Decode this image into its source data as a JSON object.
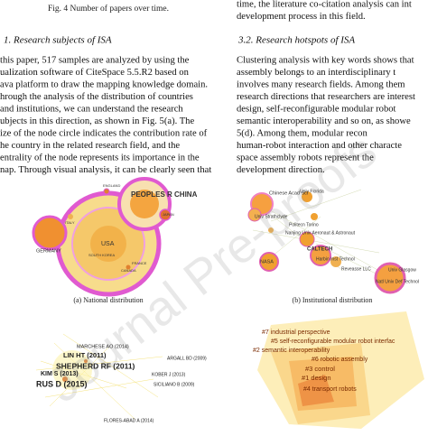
{
  "left_column": {
    "caption": "Fig. 4   Number of papers over time.",
    "heading": "1. Research subjects of ISA",
    "lines": [
      "this paper, 517 samples are analyzed by using the",
      "ualization software of CiteSpace 5.5.R2 based on",
      "ava platform to draw the mapping knowledge domain.",
      "hrough the analysis of the distribution of countries",
      "and institutions, we can understand the research",
      "ubjects in this direction, as shown in Fig. 5(a). The",
      "ize of the node circle indicates the contribution rate of",
      "he country in the related research field, and the",
      "entrality of the node represents its importance in the",
      "nap. Through visual analysis, it can be clearly seen that"
    ]
  },
  "right_column": {
    "top_lines": [
      "time, the literature co-citation analysis can int",
      "development process in this field."
    ],
    "heading": "3.2. Research hotspots of ISA",
    "lines": [
      "Clustering analysis with key words shows that",
      "assembly belongs to an interdisciplinary t",
      "involves many research fields. Among them",
      "research directions that researchers are interest",
      "design, self-reconfigurable modular robot",
      "semantic interoperability and so on, as showe",
      "5(d). Among them, modular recon",
      "human-robot interaction and other characte",
      "space assembly robots represent the",
      "development direction."
    ]
  },
  "figures": [
    {
      "caption": "(a) National distribution",
      "labels": [
        "PEOPLES R CHINA",
        "USA",
        "GERMANY",
        "ITALY",
        "ENGLAND",
        "JAPAN",
        "FRANCE",
        "CANADA",
        "SOUTH KOREA"
      ]
    },
    {
      "caption": "(b) Institutional distribution",
      "labels": [
        "Chinese Acad Sci",
        "Univ Florida",
        "Univ Strathclyde",
        "Politecn Torino",
        "Nanjing Univ Aeronaut & Astronaut",
        "CALTECH",
        "NASA",
        "Harbin Inst Technol",
        "Reveasse LLC",
        "Univ Glasgow",
        "Natl Univ Def Technol"
      ]
    },
    {
      "labels": [
        "MARCHESE AO (2014)",
        "LIN HT (2011)",
        "SHEPHERD RF (2011)",
        "KIM S (2013)",
        "RUS D (2015)",
        "ARGALL BD (2009)",
        "KOBER J (2013)",
        "SICILIANO B (2009)",
        "FLORES-ABAD A (2014)"
      ]
    },
    {
      "labels": [
        "#7 industrial perspective",
        "#5 self-reconfigurable modular robot interfac",
        "#2 semantic interoperability",
        "#6 robotic assembly",
        "#3 control",
        "#1 design",
        "#4 transport robots"
      ]
    }
  ],
  "watermark": "Journal Pre-proofs"
}
